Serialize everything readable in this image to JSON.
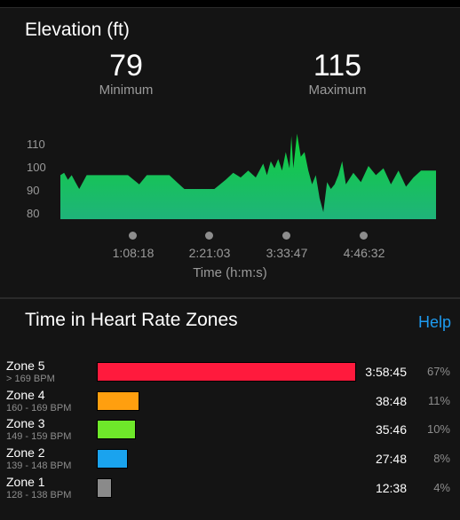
{
  "elevation": {
    "title": "Elevation (ft)",
    "minimum": {
      "value": "79",
      "label": "Minimum"
    },
    "maximum": {
      "value": "115",
      "label": "Maximum"
    },
    "fill_top_color": "#0fd13a",
    "fill_bottom_color": "#1fb37a",
    "x_axis_title": "Time (h:m:s)",
    "x_ticks": [
      "1:08:18",
      "2:21:03",
      "3:33:47",
      "4:46:32"
    ],
    "y_ticks": [
      "110",
      "100",
      "90",
      "80"
    ]
  },
  "chart_data": {
    "type": "area",
    "title": "Elevation (ft)",
    "xlabel": "Time (h:m:s)",
    "ylabel": "",
    "ylim": [
      78,
      116
    ],
    "y_ticks": [
      80,
      90,
      100,
      110
    ],
    "x_ticks": [
      "1:08:18",
      "2:21:03",
      "3:33:47",
      "4:46:32"
    ],
    "x_fraction": [
      0.0,
      0.01,
      0.02,
      0.03,
      0.04,
      0.05,
      0.07,
      0.09,
      0.12,
      0.15,
      0.18,
      0.21,
      0.23,
      0.25,
      0.27,
      0.29,
      0.31,
      0.33,
      0.35,
      0.38,
      0.41,
      0.44,
      0.46,
      0.48,
      0.5,
      0.52,
      0.54,
      0.55,
      0.56,
      0.57,
      0.58,
      0.59,
      0.6,
      0.61,
      0.615,
      0.62,
      0.63,
      0.64,
      0.65,
      0.66,
      0.67,
      0.68,
      0.69,
      0.7,
      0.71,
      0.72,
      0.73,
      0.74,
      0.75,
      0.76,
      0.78,
      0.8,
      0.82,
      0.84,
      0.86,
      0.88,
      0.9,
      0.92,
      0.94,
      0.96,
      0.98,
      1.0
    ],
    "values": [
      96,
      97,
      94,
      96,
      93,
      90,
      96,
      96,
      96,
      96,
      96,
      92,
      96,
      96,
      96,
      96,
      93,
      90,
      90,
      90,
      90,
      94,
      97,
      95,
      98,
      95,
      101,
      96,
      102,
      99,
      103,
      98,
      106,
      99,
      113,
      99,
      114,
      104,
      106,
      98,
      92,
      96,
      86,
      80,
      93,
      90,
      92,
      96,
      102,
      92,
      97,
      93,
      100,
      96,
      99,
      92,
      98,
      91,
      95,
      98,
      98,
      98
    ],
    "grid": false,
    "legend": "none"
  },
  "heart_rate": {
    "title": "Time in Heart Rate Zones",
    "help_label": "Help",
    "zones": [
      {
        "name": "Zone 5",
        "range": "> 169 BPM",
        "time": "3:58:45",
        "percent": "67%",
        "fraction": 0.67,
        "color": "#ff1a3d"
      },
      {
        "name": "Zone 4",
        "range": "160 - 169 BPM",
        "time": "38:48",
        "percent": "11%",
        "fraction": 0.11,
        "color": "#ff9f0f"
      },
      {
        "name": "Zone 3",
        "range": "149 - 159 BPM",
        "time": "35:46",
        "percent": "10%",
        "fraction": 0.1,
        "color": "#6ee82a"
      },
      {
        "name": "Zone 2",
        "range": "139 - 148 BPM",
        "time": "27:48",
        "percent": "8%",
        "fraction": 0.08,
        "color": "#1aa3ee"
      },
      {
        "name": "Zone 1",
        "range": "128 - 138 BPM",
        "time": "12:38",
        "percent": "4%",
        "fraction": 0.04,
        "color": "#8a8a8a"
      }
    ]
  }
}
